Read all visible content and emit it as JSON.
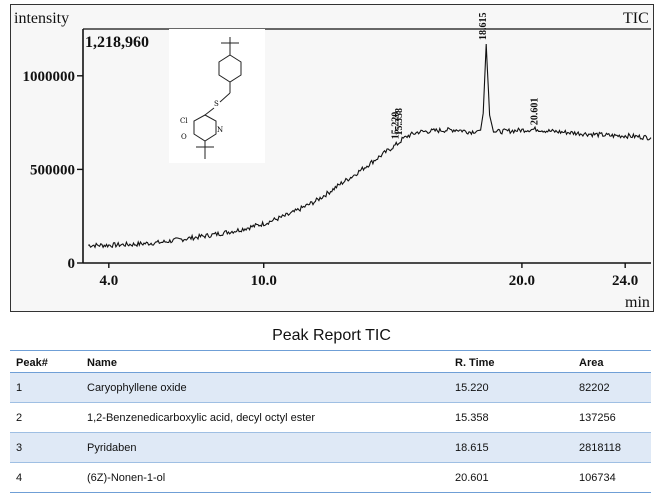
{
  "chart_data": {
    "type": "line",
    "title": "TIC",
    "ylabel": "intensity",
    "xlabel": "min",
    "max_intensity_label": "1,218,960",
    "xlim": [
      3.0,
      25.0
    ],
    "ylim": [
      0,
      1250000
    ],
    "x_ticks": [
      {
        "value": 4.0,
        "label": "4.0"
      },
      {
        "value": 10.0,
        "label": "10.0"
      },
      {
        "value": 20.0,
        "label": "20.0"
      },
      {
        "value": 24.0,
        "label": "24.0"
      }
    ],
    "y_ticks": [
      {
        "value": 0,
        "label": "0"
      },
      {
        "value": 500000,
        "label": "500000"
      },
      {
        "value": 1000000,
        "label": "1000000"
      }
    ],
    "series": [
      {
        "x": [
          3.2,
          4.0,
          5.0,
          6.0,
          7.0,
          8.0,
          9.0,
          10.0,
          11.0,
          12.0,
          12.5,
          13.0,
          13.5,
          14.0,
          14.5,
          15.0,
          15.22,
          15.358,
          15.6,
          16.0,
          16.5,
          17.0,
          17.5,
          18.0,
          18.4,
          18.5,
          18.615,
          18.75,
          18.9,
          19.5,
          20.0,
          20.601,
          21.0,
          21.5,
          22.0,
          22.5,
          23.0,
          23.5,
          24.0,
          24.5,
          25.0
        ],
        "y": [
          95000,
          95000,
          100000,
          110000,
          130000,
          150000,
          175000,
          210000,
          260000,
          330000,
          375000,
          425000,
          470000,
          520000,
          570000,
          620000,
          640000,
          660000,
          680000,
          700000,
          705000,
          710000,
          712000,
          700000,
          710000,
          800000,
          1170000,
          790000,
          700000,
          705000,
          710000,
          715000,
          705000,
          700000,
          695000,
          690000,
          685000,
          680000,
          680000,
          675000,
          670000
        ]
      }
    ],
    "peaks": [
      {
        "rt": 15.22,
        "label": "15.220"
      },
      {
        "rt": 15.358,
        "label": "15.358"
      },
      {
        "rt": 18.615,
        "label": "18.615"
      },
      {
        "rt": 20.601,
        "label": "20.601"
      }
    ]
  },
  "table": {
    "title": "Peak Report TIC",
    "headers": {
      "peak": "Peak#",
      "name": "Name",
      "rt": "R. Time",
      "area": "Area"
    },
    "rows": [
      {
        "peak": "1",
        "name": "Caryophyllene oxide",
        "rt": "15.220",
        "area": "82202"
      },
      {
        "peak": "2",
        "name": "1,2-Benzenedicarboxylic acid, decyl octyl ester",
        "rt": "15.358",
        "area": "137256"
      },
      {
        "peak": "3",
        "name": "Pyridaben",
        "rt": "18.615",
        "area": "2818118"
      },
      {
        "peak": "4",
        "name": "(6Z)-Nonen-1-ol",
        "rt": "20.601",
        "area": "106734"
      }
    ]
  }
}
